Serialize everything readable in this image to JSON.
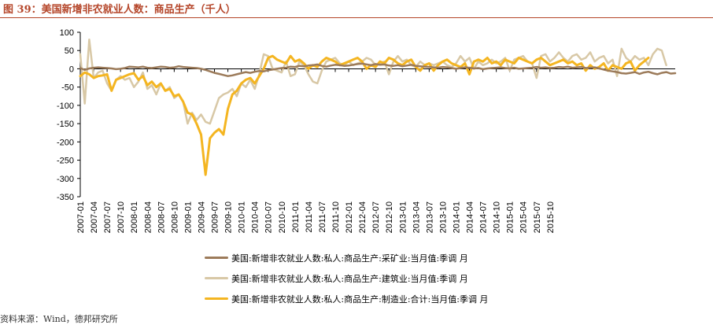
{
  "header": {
    "title": "图 39：美国新增非农就业人数：商品生产（千人）"
  },
  "footer": {
    "source": "资料来源：Wind，德邦研究所"
  },
  "colors": {
    "accent": "#b5462a",
    "mining": "#9c7b5a",
    "construction": "#d8c8a6",
    "manufacturing": "#f4b521"
  },
  "chart_data": {
    "type": "line",
    "title": "",
    "xlabel": "",
    "ylabel": "",
    "ylim": [
      -350,
      100
    ],
    "yticks": [
      "100",
      "50",
      "0",
      "-50",
      "-100",
      "-150",
      "-200",
      "-250",
      "-300",
      "-350"
    ],
    "xticks": [
      "2007-01",
      "2007-04",
      "2007-07",
      "2007-10",
      "2008-01",
      "2008-04",
      "2008-07",
      "2008-10",
      "2009-01",
      "2009-04",
      "2009-07",
      "2009-10",
      "2010-01",
      "2010-04",
      "2010-07",
      "2010-10",
      "2011-01",
      "2011-04",
      "2011-07",
      "2011-10",
      "2012-01",
      "2012-04",
      "2012-07",
      "2012-10",
      "2013-01",
      "2013-04",
      "2013-07",
      "2013-10",
      "2014-01",
      "2014-04",
      "2014-07",
      "2014-10",
      "2015-01",
      "2015-04",
      "2015-07",
      "2015-10"
    ],
    "x_start": "2007-01",
    "legend_position": "bottom",
    "grid": false,
    "series": [
      {
        "name": "美国:新增非农就业人数:私人:商品生产:采矿业:当月值:季调 月",
        "color": "#9c7b5a",
        "values": [
          2,
          -3,
          1,
          3,
          4,
          3,
          2,
          1,
          -1,
          0,
          2,
          6,
          5,
          4,
          6,
          3,
          2,
          4,
          6,
          5,
          3,
          4,
          7,
          5,
          4,
          3,
          2,
          0,
          -3,
          -7,
          -11,
          -14,
          -17,
          -20,
          -18,
          -15,
          -12,
          -9,
          -11,
          -8,
          -6,
          -7,
          -4,
          -2,
          0,
          2,
          3,
          6,
          5,
          8,
          7,
          9,
          10,
          12,
          8,
          6,
          9,
          11,
          10,
          8,
          9,
          11,
          13,
          14,
          12,
          10,
          13,
          11,
          12,
          9,
          8,
          10,
          7,
          9,
          11,
          8,
          7,
          6,
          5,
          4,
          3,
          5,
          4,
          2,
          0,
          2,
          4,
          3,
          1,
          2,
          -1,
          1,
          2,
          3,
          4,
          2,
          1,
          3,
          0,
          1,
          2,
          3,
          5,
          3,
          4,
          2,
          3,
          5,
          4,
          6,
          3,
          4,
          5,
          2,
          3,
          4,
          1,
          -2,
          -5,
          -7,
          -9,
          -12,
          -13,
          -11,
          -9,
          -14,
          -10,
          -8,
          -12,
          -15,
          -11,
          -9,
          -13,
          -12
        ]
      },
      {
        "name": "美国:新增非农就业人数:私人:商品生产:建筑业:当月值:季调 月",
        "color": "#d8c8a6",
        "values": [
          40,
          -95,
          80,
          -25,
          -10,
          -5,
          -40,
          -60,
          -30,
          -20,
          -30,
          -25,
          -50,
          -35,
          -10,
          -55,
          -45,
          -70,
          -40,
          -60,
          -50,
          -80,
          -70,
          -90,
          -150,
          -120,
          -140,
          -125,
          -145,
          -150,
          -115,
          -80,
          -70,
          -65,
          -55,
          -75,
          -40,
          -50,
          -30,
          -55,
          -15,
          40,
          35,
          0,
          -5,
          -10,
          20,
          -20,
          -15,
          20,
          10,
          -15,
          -35,
          -40,
          -5,
          20,
          25,
          30,
          15,
          10,
          20,
          10,
          15,
          20,
          30,
          25,
          10,
          15,
          20,
          -15,
          20,
          35,
          20,
          25,
          10,
          5,
          20,
          10,
          15,
          10,
          15,
          20,
          10,
          5,
          15,
          35,
          20,
          30,
          0,
          20,
          10,
          15,
          25,
          15,
          20,
          30,
          -5,
          25,
          30,
          35,
          20,
          15,
          -25,
          35,
          40,
          20,
          30,
          45,
          30,
          20,
          35,
          40,
          25,
          30,
          45,
          20,
          30,
          35,
          15,
          25,
          -20,
          55,
          30,
          20,
          35,
          25,
          30,
          10,
          40,
          55,
          50,
          10
        ]
      },
      {
        "name": "美国:新增非农就业人数:私人:商品生产:制造业:合计:当月值:季调 月",
        "color": "#f4b521",
        "values": [
          -20,
          -10,
          -15,
          -25,
          -20,
          -18,
          -15,
          -60,
          -30,
          -25,
          -20,
          -15,
          -12,
          -30,
          -20,
          -45,
          -35,
          -50,
          -40,
          -60,
          -55,
          -75,
          -70,
          -90,
          -120,
          -125,
          -150,
          -180,
          -290,
          -190,
          -175,
          -165,
          -180,
          -110,
          -70,
          -60,
          -40,
          -30,
          -25,
          -40,
          -20,
          0,
          30,
          35,
          25,
          20,
          15,
          35,
          20,
          25,
          15,
          0,
          10,
          5,
          20,
          30,
          25,
          20,
          10,
          15,
          20,
          25,
          30,
          20,
          0,
          10,
          5,
          20,
          15,
          30,
          25,
          15,
          10,
          20,
          25,
          5,
          -5,
          10,
          15,
          -5,
          10,
          20,
          25,
          15,
          10,
          5,
          15,
          -15,
          20,
          25,
          20,
          30,
          15,
          20,
          10,
          25,
          20,
          15,
          30,
          25,
          20,
          15,
          25,
          30,
          20,
          10,
          15,
          20,
          25,
          15,
          20,
          10,
          15,
          -5,
          10,
          0,
          5,
          15,
          -5,
          10,
          5,
          0,
          15,
          20,
          -5,
          10,
          20,
          30
        ]
      }
    ]
  }
}
